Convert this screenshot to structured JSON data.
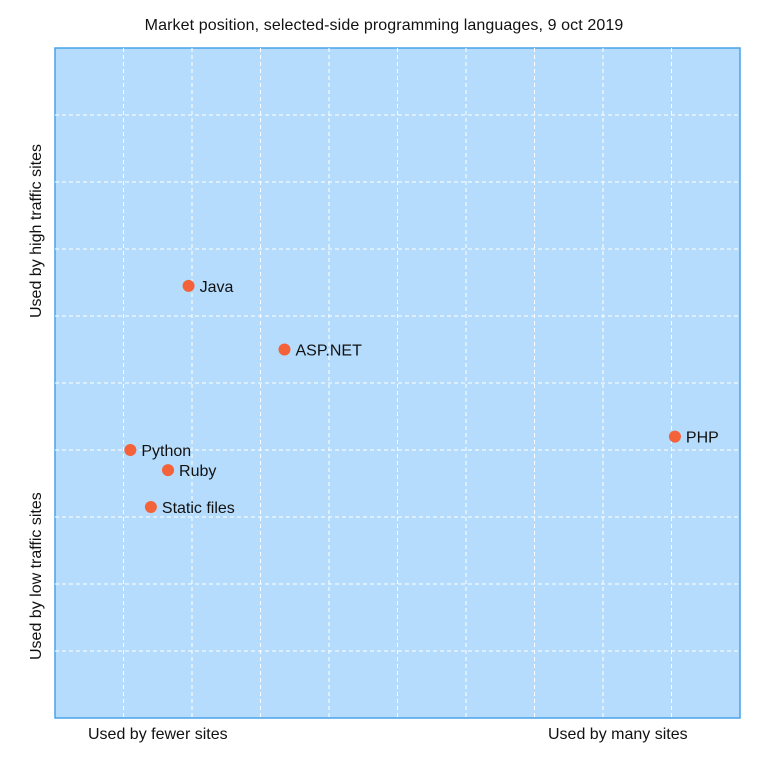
{
  "chart_data": {
    "type": "scatter",
    "title": "Market position, selected-side programming languages, 9 oct 2019",
    "x_axis": {
      "low_label": "Used by fewer sites",
      "high_label": "Used by many sites",
      "range": [
        0,
        10
      ],
      "tick_labels_shown": false
    },
    "y_axis": {
      "low_label": "Used by low traffic sites",
      "high_label": "Used by high traffic sites",
      "range": [
        0,
        10
      ],
      "tick_labels_shown": false
    },
    "grid": true,
    "points": [
      {
        "label": "Java",
        "x": 1.95,
        "y": 6.45
      },
      {
        "label": "ASP.NET",
        "x": 3.35,
        "y": 5.5
      },
      {
        "label": "PHP",
        "x": 9.05,
        "y": 4.2
      },
      {
        "label": "Python",
        "x": 1.1,
        "y": 4.0
      },
      {
        "label": "Ruby",
        "x": 1.65,
        "y": 3.7
      },
      {
        "label": "Static files",
        "x": 1.4,
        "y": 3.15
      }
    ],
    "colors": {
      "plot_background": "#b5dcfd",
      "plot_border": "#4aa3e8",
      "grid": "#ffffff",
      "marker": "#f4623a"
    }
  }
}
